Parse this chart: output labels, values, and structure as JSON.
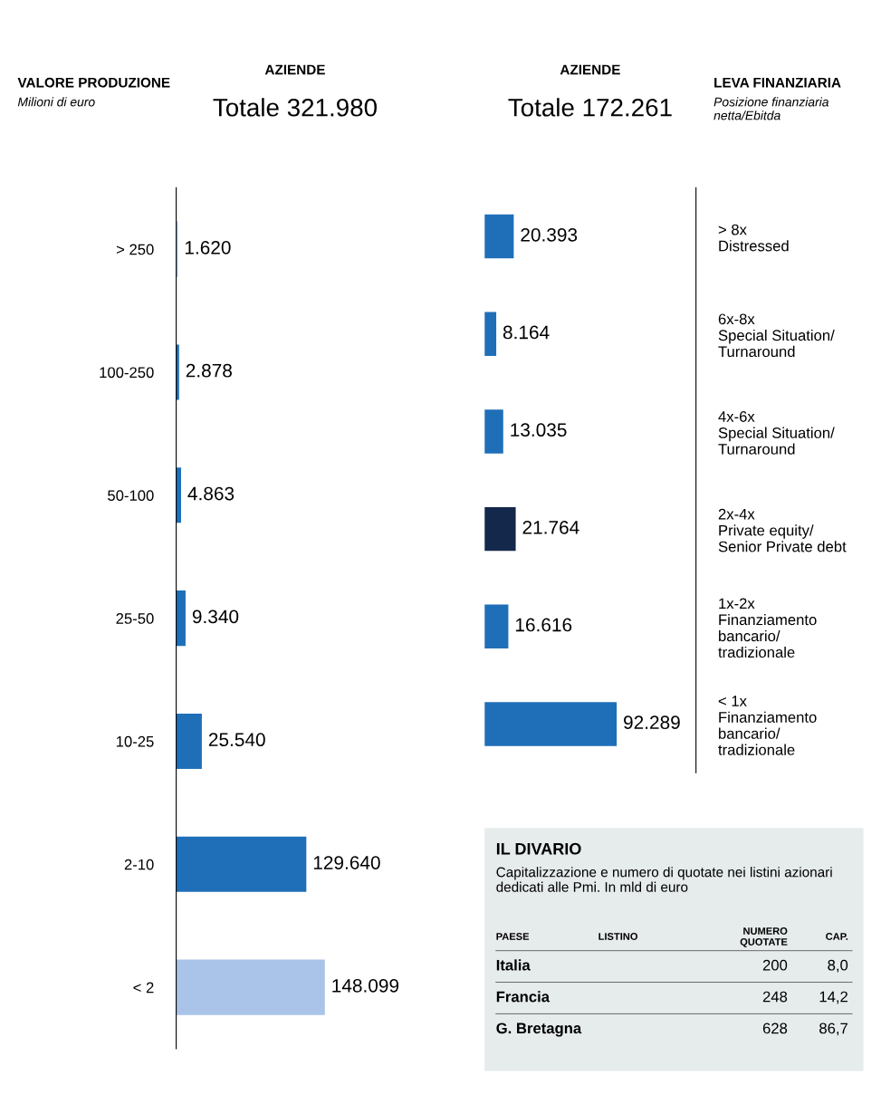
{
  "chart_data": [
    {
      "type": "bar",
      "orientation": "horizontal",
      "title": "AZIENDE",
      "subtitle": "Totale 321.980",
      "annotations": [
        "VALORE PRODUZIONE",
        "Milioni di euro"
      ],
      "tick_labels": "y",
      "categories": [
        "> 250",
        "100-250",
        "50-100",
        "25-50",
        "10-25",
        "2-10",
        "< 2"
      ],
      "values": [
        1620,
        2878,
        4863,
        9340,
        25540,
        129640,
        148099
      ],
      "colors": [
        "#a9c4e8",
        "#1f6fb8",
        "#1f6fb8",
        "#1f6fb8",
        "#1f6fb8",
        "#1f6fb8",
        "#a9c4e8"
      ],
      "value_labels": [
        "1.620",
        "2.878",
        "4.863",
        "9.340",
        "25.540",
        "129.640",
        "148.099"
      ]
    },
    {
      "type": "bar",
      "orientation": "horizontal",
      "title": "AZIENDE",
      "subtitle": "Totale 172.261",
      "annotations": [
        "LEVA FINANZIARIA",
        "Posizione finanziaria netta/Ebitda"
      ],
      "tick_labels": "y",
      "categories": [
        "> 8x\nDistressed",
        "6x-8x\nSpecial Situation/\nTurnaround",
        "4x-6x\nSpecial Situation/\nTurnaround",
        "2x-4x\nPrivate equity/\nSenior Private debt",
        "1x-2x\nFinanziamento\nbancario/\ntradizionale",
        "< 1x\nFinanziamento\nbancario/\ntradizionale"
      ],
      "values": [
        20393,
        8164,
        13035,
        21764,
        16616,
        92289
      ],
      "colors": [
        "#1f6fb8",
        "#1f6fb8",
        "#1f6fb8",
        "#14284b",
        "#1f6fb8",
        "#1f6fb8"
      ],
      "value_labels": [
        "20.393",
        "8.164",
        "13.035",
        "21.764",
        "16.616",
        "92.289"
      ]
    },
    {
      "type": "other",
      "title": "IL DIVARIO",
      "subtitle": "Capitalizzazione e numero di quotate nei listini azionari dedicati alle Pmi. In mld di euro",
      "annotations": [
        "PAESE",
        "LISTINO",
        "NUMERO\nQUOTATE",
        "CAP.",
        "Italia",
        "200",
        "8,0",
        "Francia",
        "248",
        "14,2",
        "G. Bretagna",
        "628",
        "86,7"
      ]
    }
  ]
}
